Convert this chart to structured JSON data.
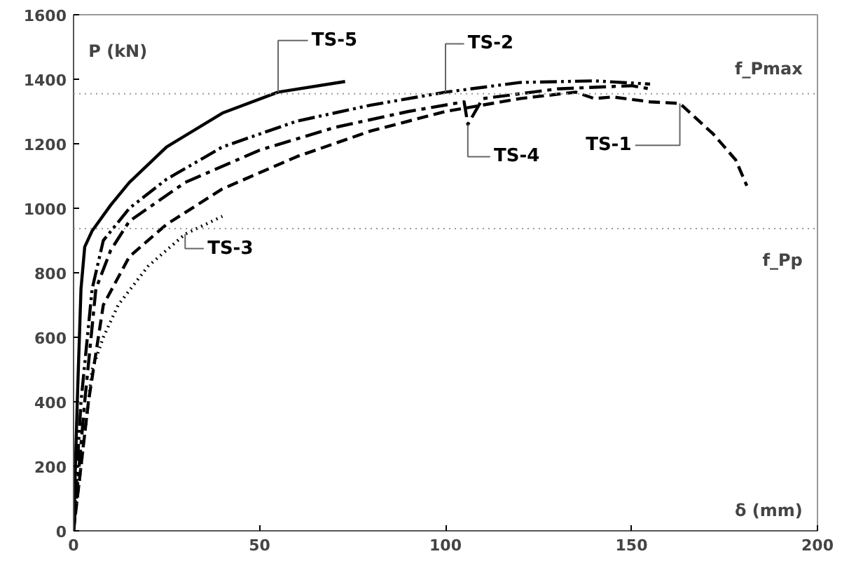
{
  "chart_data": {
    "type": "line",
    "xlabel": "δ (mm)",
    "ylabel": "P (kN)",
    "xlim": [
      0,
      200
    ],
    "ylim": [
      0,
      1600
    ],
    "xticks": [
      0,
      50,
      100,
      150,
      200
    ],
    "yticks": [
      0,
      200,
      400,
      600,
      800,
      1000,
      1200,
      1400,
      1600
    ],
    "grid": false,
    "marker": "none",
    "series": [
      {
        "name": "TS-1",
        "color": "#000000",
        "line_style": "dashed",
        "x": [
          0,
          4,
          8,
          15,
          25,
          40,
          60,
          80,
          100,
          120,
          135,
          140,
          145,
          155,
          163,
          172,
          178,
          181
        ],
        "values": [
          0,
          400,
          700,
          850,
          950,
          1060,
          1160,
          1240,
          1300,
          1340,
          1360,
          1340,
          1345,
          1330,
          1325,
          1230,
          1150,
          1070
        ]
      },
      {
        "name": "TS-2",
        "color": "#000000",
        "line_style": "dashdotdot",
        "x": [
          0,
          2,
          5,
          8,
          15,
          25,
          40,
          60,
          80,
          100,
          120,
          140,
          155
        ],
        "values": [
          0,
          400,
          750,
          900,
          1000,
          1090,
          1190,
          1270,
          1320,
          1360,
          1390,
          1395,
          1385
        ]
      },
      {
        "name": "TS-3",
        "color": "#000000",
        "line_style": "dotted",
        "x": [
          0,
          3,
          5,
          8,
          12,
          20,
          30,
          40
        ],
        "values": [
          0,
          300,
          500,
          600,
          700,
          820,
          920,
          975
        ]
      },
      {
        "name": "TS-4",
        "color": "#000000",
        "line_style": "dashdot",
        "x": [
          0,
          3,
          6,
          10,
          15,
          30,
          50,
          70,
          90,
          105,
          106,
          110,
          130,
          150,
          155
        ],
        "values": [
          0,
          400,
          750,
          870,
          960,
          1080,
          1180,
          1250,
          1300,
          1330,
          1260,
          1340,
          1370,
          1380,
          1370
        ]
      },
      {
        "name": "TS-5",
        "color": "#000000",
        "line_style": "solid",
        "x": [
          0,
          1,
          2,
          3,
          5,
          10,
          15,
          25,
          40,
          55,
          73
        ],
        "values": [
          0,
          400,
          750,
          880,
          930,
          1010,
          1080,
          1190,
          1295,
          1360,
          1393
        ]
      }
    ],
    "ref_lines": [
      {
        "axis": "y",
        "value": 1355,
        "label": "f_Pmax",
        "color": "#999999",
        "line_style": "dotted"
      },
      {
        "axis": "y",
        "value": 937,
        "label": "f_Pp",
        "color": "#999999",
        "line_style": "dotted"
      }
    ]
  }
}
